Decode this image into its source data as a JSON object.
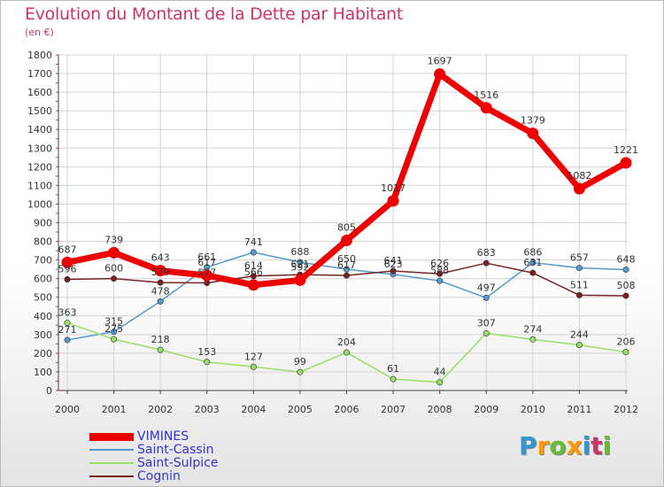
{
  "title": "Evolution du Montant de la Dette par Habitant",
  "unit_label": "(en €)",
  "brand": {
    "text": "Proxiti",
    "letter_colors": [
      "#3399cc",
      "#ff9900",
      "#66bb33",
      "#ff9900",
      "#3399cc",
      "#cc3366",
      "#66bb33"
    ]
  },
  "chart_data": {
    "type": "line",
    "x": [
      "2000",
      "2001",
      "2002",
      "2003",
      "2004",
      "2005",
      "2006",
      "2007",
      "2008",
      "2009",
      "2010",
      "2011",
      "2012"
    ],
    "ylim": [
      0,
      1800
    ],
    "yticks": [
      0,
      100,
      200,
      300,
      400,
      500,
      600,
      700,
      800,
      900,
      1000,
      1100,
      1200,
      1300,
      1400,
      1500,
      1600,
      1700,
      1800
    ],
    "grid": true,
    "legend_position": "bottom-left",
    "series": [
      {
        "name": "VIMINES",
        "color": "#ee0000",
        "emphasis": true,
        "values": [
          687,
          739,
          643,
          617,
          566,
          592,
          805,
          1017,
          1697,
          1516,
          1379,
          1082,
          1221
        ]
      },
      {
        "name": "Saint-Cassin",
        "color": "#5599cc",
        "values": [
          271,
          315,
          478,
          661,
          741,
          688,
          650,
          623,
          588,
          497,
          686,
          657,
          648
        ]
      },
      {
        "name": "Saint-Sulpice",
        "color": "#99dd66",
        "values": [
          363,
          275,
          218,
          153,
          127,
          99,
          204,
          61,
          44,
          307,
          274,
          244,
          206
        ]
      },
      {
        "name": "Cognin",
        "color": "#772222",
        "values": [
          596,
          600,
          579,
          577,
          614,
          621,
          617,
          641,
          626,
          683,
          631,
          511,
          508
        ]
      }
    ]
  }
}
